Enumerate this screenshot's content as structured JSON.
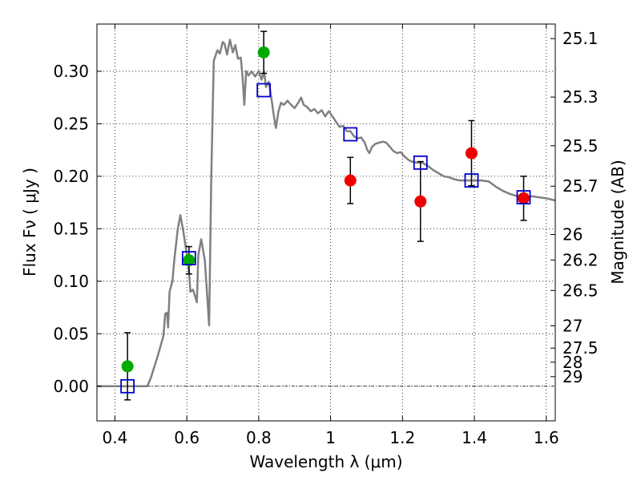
{
  "chart_data": {
    "type": "scatter",
    "xlabel": "Wavelength  λ (μm)",
    "ylabel": "Flux  Fν  ( μJy )",
    "ylabel_right": "Magnitude (AB)",
    "xlim": [
      0.35,
      1.625
    ],
    "ylim": [
      -0.033,
      0.345
    ],
    "grid": true,
    "xticks": [
      {
        "value": 0.4,
        "label": "0.4"
      },
      {
        "value": 0.6,
        "label": "0.6"
      },
      {
        "value": 0.8,
        "label": "0.8"
      },
      {
        "value": 1.0,
        "label": "1"
      },
      {
        "value": 1.2,
        "label": "1.2"
      },
      {
        "value": 1.4,
        "label": "1.4"
      },
      {
        "value": 1.6,
        "label": "1.6"
      }
    ],
    "yticks": [
      {
        "value": 0.0,
        "label": "0.00"
      },
      {
        "value": 0.05,
        "label": "0.05"
      },
      {
        "value": 0.1,
        "label": "0.10"
      },
      {
        "value": 0.15,
        "label": "0.15"
      },
      {
        "value": 0.2,
        "label": "0.20"
      },
      {
        "value": 0.25,
        "label": "0.25"
      },
      {
        "value": 0.3,
        "label": "0.30"
      }
    ],
    "magnitude_ticks": [
      {
        "mag": 25.1,
        "label": "25.1"
      },
      {
        "mag": 25.3,
        "label": "25.3"
      },
      {
        "mag": 25.5,
        "label": "25.5"
      },
      {
        "mag": 25.7,
        "label": "25.7"
      },
      {
        "mag": 26,
        "label": "26"
      },
      {
        "mag": 26.2,
        "label": "26.2"
      },
      {
        "mag": 26.5,
        "label": "26.5"
      },
      {
        "mag": 27,
        "label": "27"
      },
      {
        "mag": 27.5,
        "label": "27.5"
      },
      {
        "mag": 28,
        "label": "28"
      },
      {
        "mag": 29,
        "label": "29"
      }
    ],
    "observed_green": [
      {
        "x": 0.435,
        "y": 0.019,
        "err": 0.032
      },
      {
        "x": 0.606,
        "y": 0.12,
        "err": 0.013
      },
      {
        "x": 0.814,
        "y": 0.318,
        "err": 0.02
      }
    ],
    "observed_red": [
      {
        "x": 1.055,
        "y": 0.196,
        "err": 0.022
      },
      {
        "x": 1.25,
        "y": 0.176,
        "err": 0.038
      },
      {
        "x": 1.392,
        "y": 0.222,
        "err": 0.031
      },
      {
        "x": 1.537,
        "y": 0.179,
        "err": 0.021
      }
    ],
    "model_bandpass": [
      {
        "x": 0.435,
        "y": 0.0
      },
      {
        "x": 0.606,
        "y": 0.122
      },
      {
        "x": 0.814,
        "y": 0.282
      },
      {
        "x": 1.055,
        "y": 0.24
      },
      {
        "x": 1.25,
        "y": 0.213
      },
      {
        "x": 1.392,
        "y": 0.196
      },
      {
        "x": 1.537,
        "y": 0.18
      }
    ],
    "model_spectrum": [
      [
        0.35,
        0.0
      ],
      [
        0.49,
        0.0
      ],
      [
        0.5,
        0.008
      ],
      [
        0.52,
        0.03
      ],
      [
        0.535,
        0.048
      ],
      [
        0.54,
        0.069
      ],
      [
        0.545,
        0.07
      ],
      [
        0.548,
        0.056
      ],
      [
        0.552,
        0.09
      ],
      [
        0.56,
        0.1
      ],
      [
        0.565,
        0.12
      ],
      [
        0.575,
        0.15
      ],
      [
        0.582,
        0.163
      ],
      [
        0.59,
        0.148
      ],
      [
        0.598,
        0.13
      ],
      [
        0.605,
        0.114
      ],
      [
        0.61,
        0.09
      ],
      [
        0.617,
        0.092
      ],
      [
        0.622,
        0.087
      ],
      [
        0.628,
        0.08
      ],
      [
        0.632,
        0.125
      ],
      [
        0.64,
        0.14
      ],
      [
        0.65,
        0.12
      ],
      [
        0.657,
        0.085
      ],
      [
        0.662,
        0.058
      ],
      [
        0.668,
        0.2
      ],
      [
        0.675,
        0.31
      ],
      [
        0.685,
        0.32
      ],
      [
        0.692,
        0.317
      ],
      [
        0.7,
        0.328
      ],
      [
        0.705,
        0.326
      ],
      [
        0.712,
        0.316
      ],
      [
        0.72,
        0.33
      ],
      [
        0.728,
        0.318
      ],
      [
        0.735,
        0.325
      ],
      [
        0.742,
        0.312
      ],
      [
        0.75,
        0.313
      ],
      [
        0.755,
        0.295
      ],
      [
        0.76,
        0.268
      ],
      [
        0.765,
        0.3
      ],
      [
        0.772,
        0.296
      ],
      [
        0.78,
        0.3
      ],
      [
        0.79,
        0.295
      ],
      [
        0.8,
        0.3
      ],
      [
        0.808,
        0.292
      ],
      [
        0.815,
        0.3
      ],
      [
        0.82,
        0.285
      ],
      [
        0.828,
        0.29
      ],
      [
        0.835,
        0.275
      ],
      [
        0.842,
        0.258
      ],
      [
        0.848,
        0.246
      ],
      [
        0.855,
        0.262
      ],
      [
        0.862,
        0.27
      ],
      [
        0.87,
        0.268
      ],
      [
        0.88,
        0.272
      ],
      [
        0.89,
        0.268
      ],
      [
        0.9,
        0.265
      ],
      [
        0.91,
        0.27
      ],
      [
        0.918,
        0.275
      ],
      [
        0.925,
        0.268
      ],
      [
        0.935,
        0.266
      ],
      [
        0.945,
        0.262
      ],
      [
        0.955,
        0.264
      ],
      [
        0.965,
        0.26
      ],
      [
        0.975,
        0.263
      ],
      [
        0.985,
        0.257
      ],
      [
        0.995,
        0.262
      ],
      [
        1.005,
        0.257
      ],
      [
        1.015,
        0.252
      ],
      [
        1.025,
        0.247
      ],
      [
        1.035,
        0.248
      ],
      [
        1.045,
        0.243
      ],
      [
        1.055,
        0.243
      ],
      [
        1.065,
        0.238
      ],
      [
        1.075,
        0.236
      ],
      [
        1.085,
        0.237
      ],
      [
        1.095,
        0.232
      ],
      [
        1.102,
        0.225
      ],
      [
        1.108,
        0.222
      ],
      [
        1.115,
        0.228
      ],
      [
        1.125,
        0.231
      ],
      [
        1.135,
        0.232
      ],
      [
        1.145,
        0.233
      ],
      [
        1.155,
        0.232
      ],
      [
        1.165,
        0.228
      ],
      [
        1.175,
        0.224
      ],
      [
        1.185,
        0.222
      ],
      [
        1.195,
        0.223
      ],
      [
        1.205,
        0.219
      ],
      [
        1.215,
        0.216
      ],
      [
        1.225,
        0.214
      ],
      [
        1.24,
        0.213
      ],
      [
        1.255,
        0.213
      ],
      [
        1.27,
        0.21
      ],
      [
        1.285,
        0.206
      ],
      [
        1.3,
        0.203
      ],
      [
        1.315,
        0.2
      ],
      [
        1.33,
        0.199
      ],
      [
        1.345,
        0.197
      ],
      [
        1.36,
        0.196
      ],
      [
        1.38,
        0.196
      ],
      [
        1.4,
        0.196
      ],
      [
        1.42,
        0.196
      ],
      [
        1.44,
        0.195
      ],
      [
        1.46,
        0.19
      ],
      [
        1.48,
        0.186
      ],
      [
        1.5,
        0.183
      ],
      [
        1.52,
        0.181
      ],
      [
        1.54,
        0.18
      ],
      [
        1.56,
        0.181
      ],
      [
        1.58,
        0.18
      ],
      [
        1.6,
        0.179
      ],
      [
        1.625,
        0.177
      ]
    ],
    "colors": {
      "model_line": "#808080",
      "model_marker": "#0000cc",
      "observed_green": "#00aa00",
      "observed_red": "#ee0000",
      "errorbar": "#000000",
      "grid": "#000000"
    }
  }
}
